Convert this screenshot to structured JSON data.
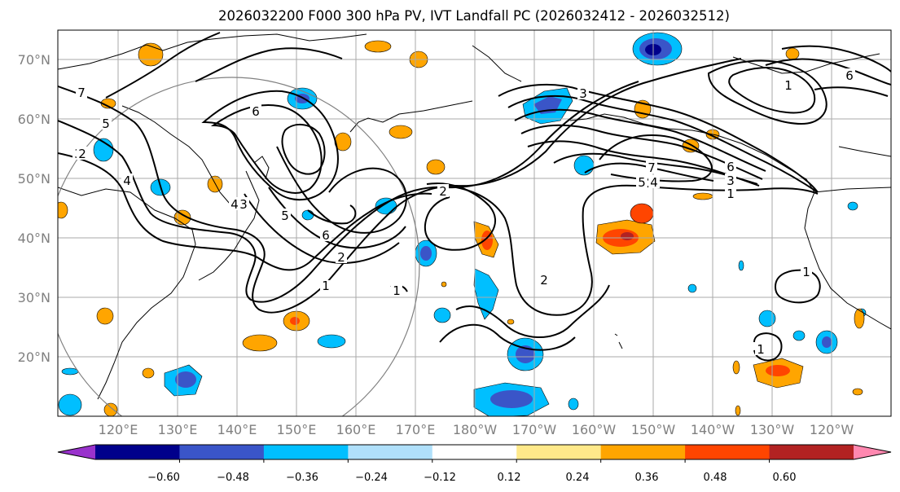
{
  "title": "2026032200 F000 300 hPa PV, IVT Landfall PC (2026032412 - 2026032512)",
  "lat_ticks": [
    "70°N",
    "60°N",
    "50°N",
    "40°N",
    "30°N",
    "20°N"
  ],
  "lon_ticks": [
    "120°E",
    "130°E",
    "140°E",
    "150°E",
    "160°E",
    "170°E",
    "180°W",
    "170°W",
    "160°W",
    "150°W",
    "140°W",
    "130°W",
    "120°W"
  ],
  "colorbar": {
    "ticks": [
      "−0.60",
      "−0.48",
      "−0.36",
      "−0.24",
      "−0.12",
      "0.12",
      "0.24",
      "0.36",
      "0.48",
      "0.60"
    ],
    "colors": [
      "#9932cc",
      "#00008b",
      "#3a55c8",
      "#00bfff",
      "#b0e0fb",
      "#ffffff",
      "#ffe98a",
      "#ffa500",
      "#ff4500",
      "#b22222",
      "#ff88b0"
    ]
  },
  "contour_labels": [
    "7",
    "6",
    "5",
    "4",
    "3",
    "2",
    "1",
    "2",
    "6",
    "4",
    "5",
    "3",
    "2",
    "1",
    "2",
    "7",
    "6",
    "5",
    "4",
    "3",
    "1",
    "3",
    "1",
    "6",
    "1",
    "1"
  ],
  "chart_data": {
    "type": "map",
    "title": "2026032200 F000 300 hPa PV, IVT Landfall PC (2026032412 - 2026032512)",
    "variables": [
      "300 hPa PV (black contours, PVU)",
      "IVT landfall principal component (shaded)"
    ],
    "contour_levels": [
      1,
      2,
      3,
      4,
      5,
      6,
      7
    ],
    "shading_levels": [
      -0.6,
      -0.48,
      -0.36,
      -0.24,
      -0.12,
      0.12,
      0.24,
      0.36,
      0.48,
      0.6
    ],
    "lon_range": [
      "110°E",
      "115°W"
    ],
    "lat_range": [
      "10°N",
      "75°N"
    ],
    "highlight_circle": "centered near 140°E, 40°N"
  }
}
